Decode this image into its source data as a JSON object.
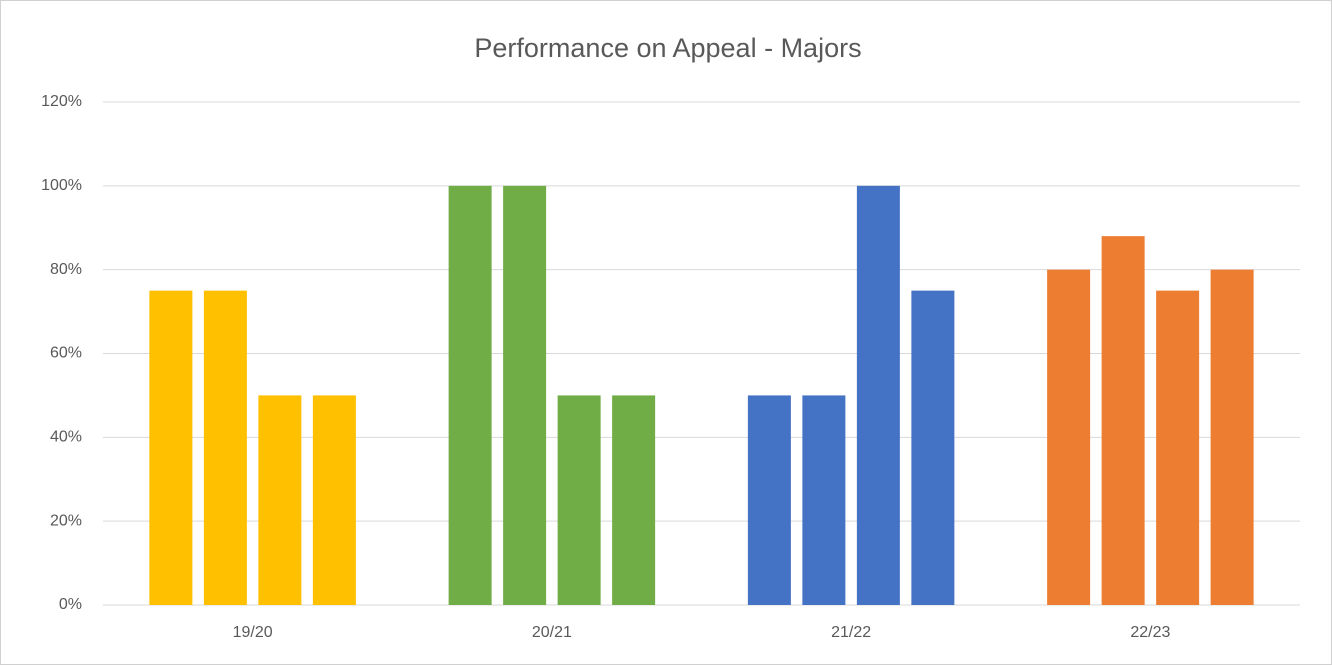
{
  "chart_data": {
    "type": "bar",
    "title": "Performance on Appeal - Majors",
    "categories": [
      "19/20",
      "20/21",
      "21/22",
      "22/23"
    ],
    "colors": [
      "#ffc000",
      "#70ad47",
      "#4472c4",
      "#ed7d31"
    ],
    "values": [
      [
        75,
        75,
        50,
        50
      ],
      [
        100,
        100,
        50,
        50
      ],
      [
        50,
        50,
        100,
        75
      ],
      [
        80,
        88,
        75,
        80
      ]
    ],
    "ylim": [
      0,
      120
    ],
    "yticks": [
      {
        "value": 0,
        "label": "0%"
      },
      {
        "value": 20,
        "label": "20%"
      },
      {
        "value": 40,
        "label": "40%"
      },
      {
        "value": 60,
        "label": "60%"
      },
      {
        "value": 80,
        "label": "80%"
      },
      {
        "value": 100,
        "label": "100%"
      },
      {
        "value": 120,
        "label": "120%"
      }
    ],
    "grid": true
  }
}
